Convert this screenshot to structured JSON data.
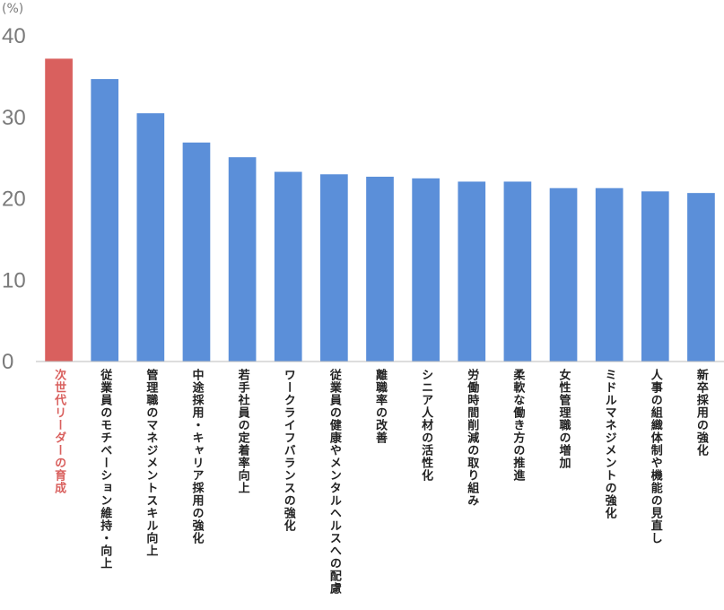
{
  "chart_data": {
    "type": "bar",
    "y_unit": "(%)",
    "categories": [
      "次世代リーダーの育成",
      "従業員のモチベーション維持・向上",
      "管理職のマネジメントスキル向上",
      "中途採用・キャリア採用の強化",
      "若手社員の定着率向上",
      "ワークライフバランスの強化",
      "従業員の健康やメンタルヘルスへの配慮",
      "離職率の改善",
      "シニア人材の活性化",
      "労働時間削減の取り組み",
      "柔軟な働き方の推進",
      "女性管理職の増加",
      "ミドルマネジメントの強化",
      "人事の組織体制や機能の見直し",
      "新卒採用の強化"
    ],
    "values": [
      37.2,
      34.7,
      30.5,
      26.9,
      25.1,
      23.3,
      23.0,
      22.7,
      22.5,
      22.1,
      22.1,
      21.3,
      21.3,
      20.9,
      20.7
    ],
    "colors": [
      "#d9605e",
      "#5b8fd9",
      "#5b8fd9",
      "#5b8fd9",
      "#5b8fd9",
      "#5b8fd9",
      "#5b8fd9",
      "#5b8fd9",
      "#5b8fd9",
      "#5b8fd9",
      "#5b8fd9",
      "#5b8fd9",
      "#5b8fd9",
      "#5b8fd9",
      "#5b8fd9"
    ],
    "ylim": [
      0,
      40
    ],
    "yticks": [
      0,
      10,
      20,
      30,
      40
    ],
    "grid": false
  }
}
